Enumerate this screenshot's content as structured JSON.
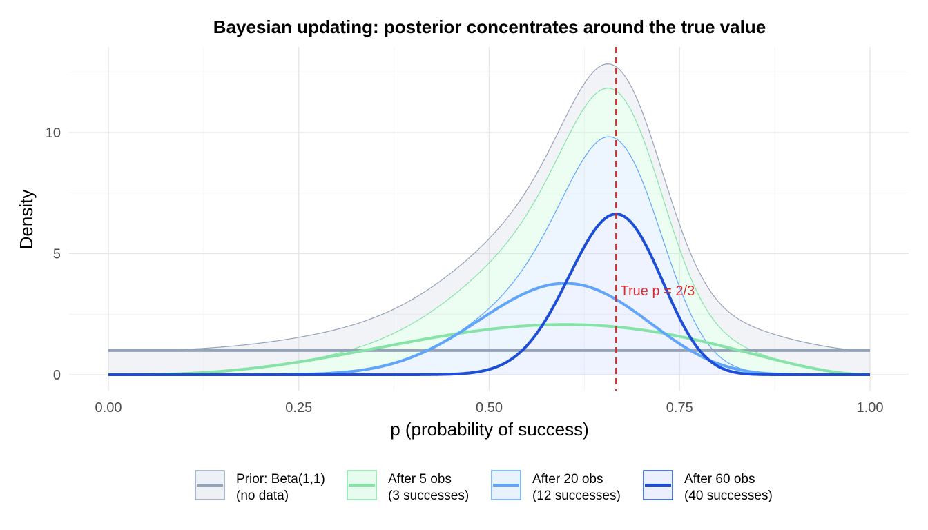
{
  "chart_data": {
    "type": "area",
    "title": "Bayesian updating: posterior concentrates around the true value",
    "xlabel": "p (probability of success)",
    "ylabel": "Density",
    "xlim": [
      0,
      1
    ],
    "ylim": [
      0,
      12.9
    ],
    "x_ticks": [
      "0.00",
      "0.25",
      "0.50",
      "0.75",
      "1.00"
    ],
    "y_ticks": [
      "0",
      "5",
      "10"
    ],
    "grid": true,
    "legend_position": "bottom",
    "series": [
      {
        "name": "Prior: Beta(1,1) (no data)",
        "legend_lines": [
          "Prior: Beta(1,1)",
          "(no data)"
        ],
        "distribution": {
          "family": "beta",
          "alpha": 1,
          "beta": 1
        },
        "line_color": "#94a3b8",
        "fill_color": "#cbd5e1"
      },
      {
        "name": "After 5 obs (3 successes)",
        "legend_lines": [
          "After 5 obs",
          "(3 successes)"
        ],
        "distribution": {
          "family": "beta",
          "alpha": 4,
          "beta": 3
        },
        "line_color": "#86e3a8",
        "fill_color": "#bbf7d0"
      },
      {
        "name": "After 20 obs (12 successes)",
        "legend_lines": [
          "After 20 obs",
          "(12 successes)"
        ],
        "distribution": {
          "family": "beta",
          "alpha": 13,
          "beta": 9
        },
        "line_color": "#60a5fa",
        "fill_color": "#bfdbfe"
      },
      {
        "name": "After 60 obs (40 successes)",
        "legend_lines": [
          "After 60 obs",
          "(40 successes)"
        ],
        "distribution": {
          "family": "beta",
          "alpha": 41,
          "beta": 21
        },
        "line_color": "#1d4ed8",
        "fill_color": "#c7d2fe"
      }
    ],
    "reference_line": {
      "x": 0.6667,
      "label": "True p = 2/3",
      "color": "#d32f2f",
      "style": "dashed"
    }
  }
}
